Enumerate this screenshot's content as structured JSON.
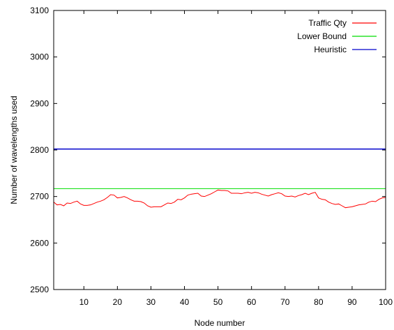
{
  "chart_data": {
    "type": "line",
    "title": "",
    "xlabel": "Node number",
    "ylabel": "Number of wavelengths used",
    "xlim": [
      1,
      100
    ],
    "ylim": [
      2500,
      3100
    ],
    "xticks": [
      10,
      20,
      30,
      40,
      50,
      60,
      70,
      80,
      90,
      100
    ],
    "yticks": [
      2500,
      2600,
      2700,
      2800,
      2900,
      3000,
      3100
    ],
    "grid": false,
    "legend_position": "top-right",
    "series": [
      {
        "name": "Traffic Qty",
        "color": "#ff0000",
        "x": [
          1,
          2,
          3,
          4,
          5,
          6,
          7,
          8,
          9,
          10,
          11,
          12,
          13,
          14,
          15,
          16,
          17,
          18,
          19,
          20,
          21,
          22,
          23,
          24,
          25,
          26,
          27,
          28,
          29,
          30,
          31,
          32,
          33,
          34,
          35,
          36,
          37,
          38,
          39,
          40,
          41,
          42,
          43,
          44,
          45,
          46,
          47,
          48,
          49,
          50,
          51,
          52,
          53,
          54,
          55,
          56,
          57,
          58,
          59,
          60,
          61,
          62,
          63,
          64,
          65,
          66,
          67,
          68,
          69,
          70,
          71,
          72,
          73,
          74,
          75,
          76,
          77,
          78,
          79,
          80,
          81,
          82,
          83,
          84,
          85,
          86,
          87,
          88,
          89,
          90,
          91,
          92,
          93,
          94,
          95,
          96,
          97,
          98,
          99,
          100
        ],
        "y": [
          2688,
          2682,
          2683,
          2680,
          2686,
          2685,
          2688,
          2690,
          2684,
          2681,
          2681,
          2682,
          2685,
          2688,
          2690,
          2693,
          2698,
          2704,
          2703,
          2697,
          2698,
          2700,
          2697,
          2693,
          2690,
          2690,
          2689,
          2686,
          2680,
          2677,
          2678,
          2678,
          2678,
          2682,
          2686,
          2685,
          2688,
          2694,
          2693,
          2697,
          2703,
          2705,
          2706,
          2707,
          2701,
          2700,
          2703,
          2706,
          2710,
          2714,
          2713,
          2713,
          2712,
          2707,
          2707,
          2707,
          2706,
          2708,
          2709,
          2707,
          2709,
          2708,
          2705,
          2703,
          2701,
          2704,
          2706,
          2708,
          2706,
          2701,
          2700,
          2701,
          2699,
          2702,
          2704,
          2707,
          2704,
          2707,
          2709,
          2697,
          2694,
          2693,
          2688,
          2685,
          2683,
          2684,
          2680,
          2676,
          2677,
          2678,
          2680,
          2682,
          2683,
          2684,
          2688,
          2690,
          2689,
          2694,
          2697,
          2698
        ]
      },
      {
        "name": "Lower Bound",
        "color": "#00dd00",
        "x": [
          1,
          100
        ],
        "y": [
          2717,
          2717
        ]
      },
      {
        "name": "Heuristic",
        "color": "#0000cc",
        "x": [
          1,
          100
        ],
        "y": [
          2802,
          2802
        ]
      }
    ]
  }
}
